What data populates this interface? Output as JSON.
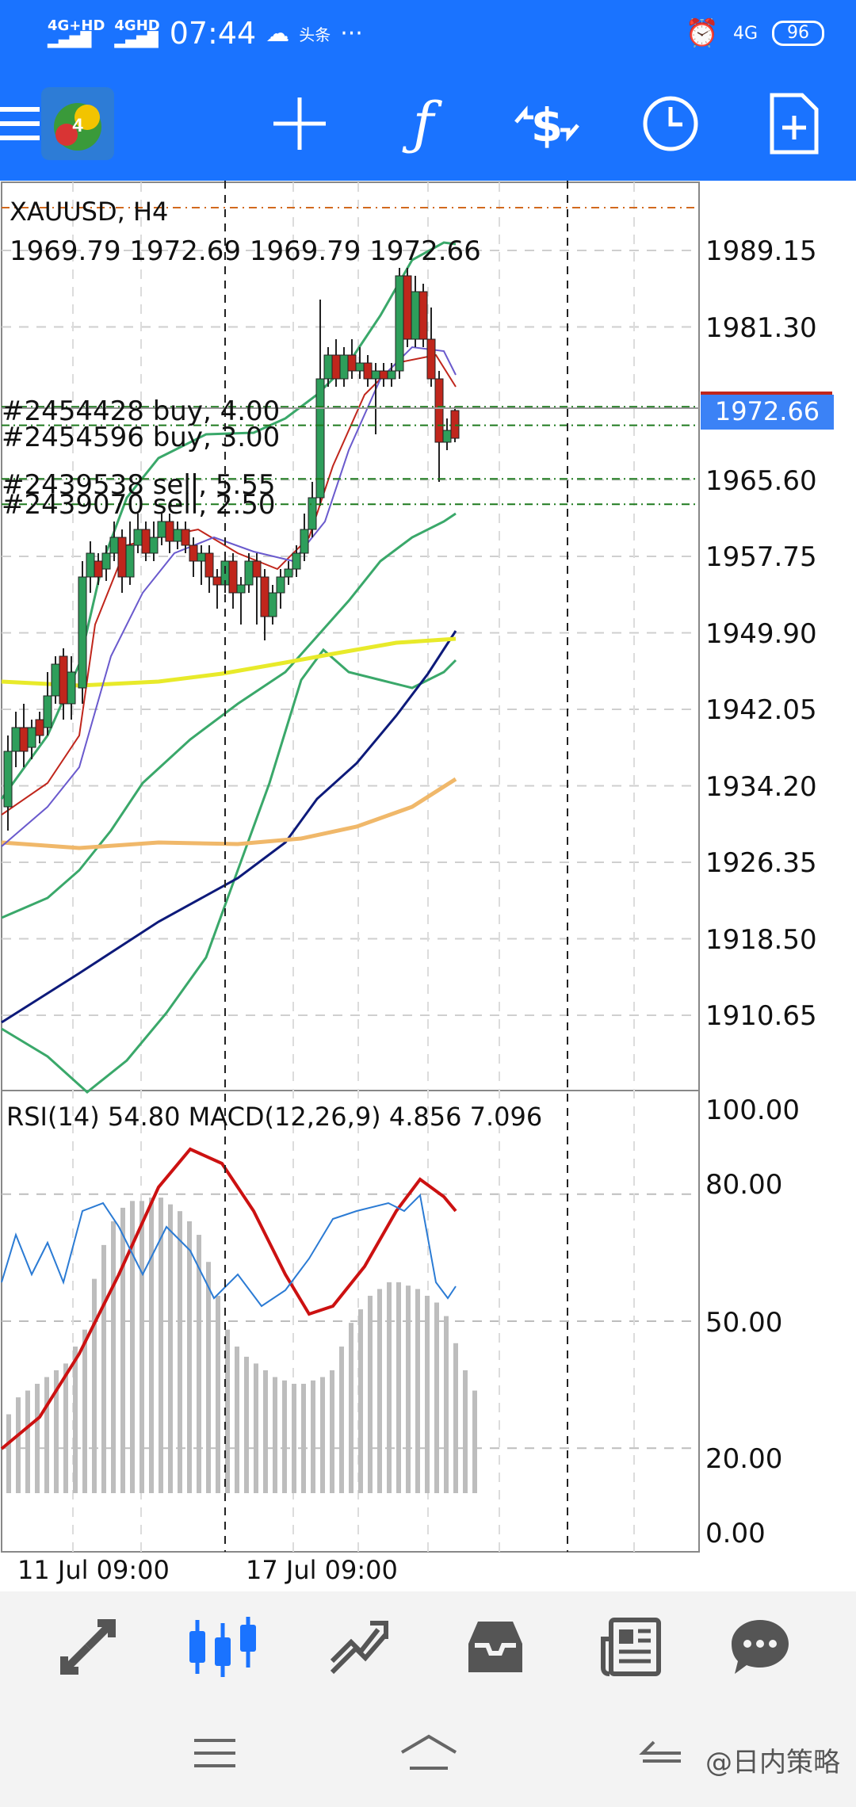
{
  "status_bar": {
    "signal1": "4G+HD",
    "signal2": "4GHD",
    "time": "07:44",
    "app_badge": "头条",
    "more": "···",
    "network": "4G",
    "battery": "96"
  },
  "toolbar": {
    "menu_icon": "hamburger-icon",
    "logo_icon": "metatrader-logo",
    "crosshair_icon": "crosshair-icon",
    "indicators_icon": "function-icon",
    "trade_icon": "dollar-arrows-icon",
    "period_icon": "clock-icon",
    "new_order_icon": "new-document-icon"
  },
  "chart": {
    "symbol": "XAUUSD, H4",
    "ohlc": "1969.79 1972.69 1969.79 1972.66",
    "current_price": "1972.66",
    "price_ticks": [
      "1989.15",
      "1981.30",
      "1965.60",
      "1957.75",
      "1949.90",
      "1942.05",
      "1934.20",
      "1926.35",
      "1918.50",
      "1910.65"
    ],
    "orders": [
      {
        "label": "#2454428 buy, 4.00",
        "price": 1973.1
      },
      {
        "label": "#2454596 buy, 3.00",
        "price": 1971.2
      },
      {
        "label": "#2439538 sell, 5.55",
        "price": 1965.7
      },
      {
        "label": "#2439070 sell, 2.50",
        "price": 1963.1
      }
    ],
    "indicator_label": "RSI(14) 54.80 MACD(12,26,9) 4.856 7.096",
    "indicator_ticks": [
      "100.00",
      "80.00",
      "50.00",
      "20.00",
      "0.00"
    ],
    "date_labels": [
      "11 Jul 09:00",
      "17 Jul 09:00"
    ]
  },
  "bottom_tabs": [
    {
      "name": "quotes",
      "icon": "quotes-arrows-icon",
      "active": false
    },
    {
      "name": "chart",
      "icon": "candlestick-icon",
      "active": true
    },
    {
      "name": "trade",
      "icon": "trade-trend-icon",
      "active": false
    },
    {
      "name": "history",
      "icon": "inbox-icon",
      "active": false
    },
    {
      "name": "news",
      "icon": "newspaper-icon",
      "active": false
    },
    {
      "name": "messages",
      "icon": "chat-bubble-icon",
      "active": false
    }
  ],
  "navbar": {
    "menu": "menu-lines-icon",
    "home": "home-icon",
    "back": "back-icon",
    "watermark": "@日内策略"
  },
  "colors": {
    "header_blue": "#1a73ff",
    "bull_candle": "#2e9e5b",
    "bear_candle": "#c0261c",
    "bollinger": "#3aa86a",
    "ma_navy": "#0d1a7a",
    "ma_yellow": "#e8ea2a",
    "ma_orange": "#f0b86a",
    "price_highlight": "#3b82f6"
  }
}
